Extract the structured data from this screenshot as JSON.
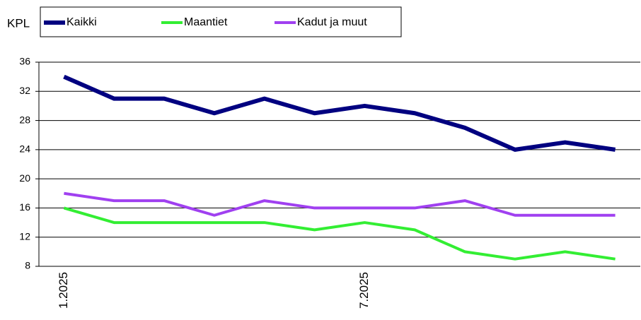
{
  "chart_data": {
    "type": "line",
    "y_label": "KPL",
    "categories": [
      "1.2025",
      null,
      null,
      null,
      null,
      null,
      "7.2025",
      null,
      null,
      null,
      null,
      null
    ],
    "series": [
      {
        "name": "Kaikki",
        "color": "#000080",
        "values": [
          34,
          31,
          31,
          29,
          31,
          29,
          30,
          29,
          27,
          24,
          25,
          24
        ]
      },
      {
        "name": "Maantiet",
        "color": "#33ee33",
        "values": [
          16,
          14,
          14,
          14,
          14,
          13,
          14,
          13,
          10,
          9,
          10,
          9
        ]
      },
      {
        "name": "Kadut ja muut",
        "color": "#a040f0",
        "values": [
          18,
          17,
          17,
          15,
          17,
          16,
          16,
          16,
          17,
          15,
          15,
          15
        ]
      }
    ],
    "ylim": [
      8,
      36
    ],
    "yticks": [
      8,
      12,
      16,
      20,
      24,
      28,
      32,
      36
    ],
    "grid": true,
    "legend": "top"
  }
}
